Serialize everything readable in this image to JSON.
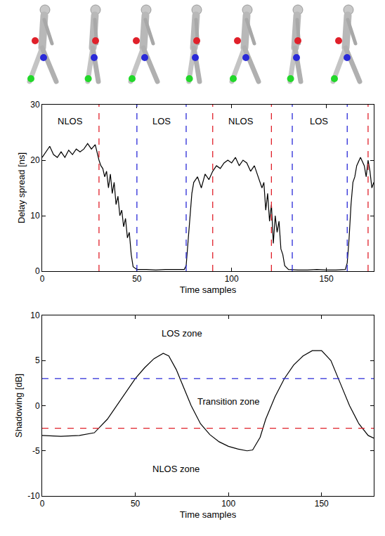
{
  "chart_data": [
    {
      "type": "line",
      "x_label": "Time samples",
      "y_label": "Delay spread [ns]",
      "xlim": [
        0,
        175
      ],
      "ylim": [
        0,
        30
      ],
      "xticks": [
        0,
        50,
        100,
        150
      ],
      "yticks": [
        0,
        10,
        20,
        30
      ],
      "grid": false,
      "color": "#000000",
      "x": [
        0,
        2,
        4,
        6,
        8,
        10,
        12,
        14,
        16,
        18,
        20,
        22,
        24,
        26,
        28,
        30,
        31,
        32,
        33,
        34,
        35,
        36,
        37,
        38,
        39,
        40,
        41,
        42,
        43,
        44,
        45,
        46,
        47,
        48,
        50,
        55,
        60,
        65,
        70,
        75,
        76,
        77,
        78,
        79,
        80,
        82,
        84,
        86,
        88,
        90,
        92,
        94,
        96,
        98,
        100,
        102,
        104,
        106,
        108,
        110,
        112,
        114,
        116,
        117,
        118,
        119,
        120,
        121,
        122,
        123,
        124,
        125,
        126,
        127,
        128,
        130,
        135,
        140,
        145,
        150,
        155,
        160,
        161,
        162,
        163,
        164,
        165,
        166,
        168,
        170,
        171,
        172,
        173,
        174,
        175
      ],
      "values": [
        20.5,
        21.5,
        22.5,
        21,
        20.5,
        21.5,
        20.5,
        21.8,
        21,
        22,
        21.5,
        22,
        23,
        22,
        22.8,
        20,
        19,
        18.5,
        17,
        18,
        15,
        17.5,
        14,
        16,
        12,
        13.5,
        10,
        11,
        8,
        9.5,
        6,
        7,
        3,
        0.8,
        0.3,
        0.3,
        0.2,
        0.3,
        0.3,
        0.3,
        1,
        5,
        10,
        14,
        16,
        17,
        15,
        17.5,
        16.5,
        18,
        19,
        18.5,
        19.5,
        20,
        19.5,
        20.5,
        19,
        20,
        19.5,
        18,
        19,
        17,
        15,
        16,
        11,
        14,
        9,
        12,
        5,
        10,
        7,
        9,
        4,
        3,
        1,
        0.3,
        0.2,
        0.2,
        0.3,
        0.2,
        0.2,
        0.3,
        1.5,
        6,
        12,
        16,
        17,
        19,
        20.5,
        19,
        17,
        20,
        18,
        15,
        16
      ],
      "reference_lines": [
        {
          "x": 30,
          "color": "#e0202a",
          "line_style": "dashed"
        },
        {
          "x": 50,
          "color": "#2a2ad8",
          "line_style": "dashed"
        },
        {
          "x": 76,
          "color": "#2a2ad8",
          "line_style": "dashed"
        },
        {
          "x": 90,
          "color": "#e0202a",
          "line_style": "dashed"
        },
        {
          "x": 121,
          "color": "#e0202a",
          "line_style": "dashed"
        },
        {
          "x": 132,
          "color": "#2a2ad8",
          "line_style": "dashed"
        },
        {
          "x": 161,
          "color": "#2a2ad8",
          "line_style": "dashed"
        },
        {
          "x": 172,
          "color": "#e0202a",
          "line_style": "dashed"
        }
      ],
      "annotations": [
        {
          "text": "NLOS",
          "x": 15,
          "y": 27
        },
        {
          "text": "LOS",
          "x": 63,
          "y": 27
        },
        {
          "text": "NLOS",
          "x": 105,
          "y": 27
        },
        {
          "text": "LOS",
          "x": 146,
          "y": 27
        }
      ]
    },
    {
      "type": "line",
      "x_label": "Time samples",
      "y_label": "Shadowing [dB]",
      "xlim": [
        0,
        178
      ],
      "ylim": [
        -10,
        10
      ],
      "xticks": [
        0,
        50,
        100,
        150
      ],
      "yticks": [
        -10,
        -5,
        0,
        5,
        10
      ],
      "grid": false,
      "color": "#000000",
      "x": [
        0,
        10,
        20,
        28,
        35,
        40,
        45,
        50,
        55,
        60,
        65,
        68,
        72,
        76,
        80,
        85,
        90,
        95,
        100,
        105,
        110,
        113,
        117,
        120,
        125,
        130,
        135,
        140,
        145,
        150,
        155,
        160,
        165,
        170,
        175,
        178
      ],
      "values": [
        -3.3,
        -3.4,
        -3.3,
        -3,
        -1.5,
        0,
        1.5,
        3,
        4.2,
        5.2,
        5.8,
        5.5,
        4,
        2,
        0,
        -2,
        -3.2,
        -4,
        -4.5,
        -4.8,
        -5,
        -4.9,
        -3.5,
        -1.5,
        1,
        3,
        4.5,
        5.5,
        6.1,
        6.1,
        5,
        2.5,
        0,
        -2,
        -3.3,
        -3.6
      ],
      "reference_lines": [
        {
          "y": 3,
          "color": "#2a2ad8",
          "line_style": "dashed"
        },
        {
          "y": -2.5,
          "color": "#e0202a",
          "line_style": "dashed"
        }
      ],
      "annotations": [
        {
          "text": "LOS zone",
          "x": 75,
          "y": 8
        },
        {
          "text": "Transition zone",
          "x": 100,
          "y": 0.5
        },
        {
          "text": "NLOS zone",
          "x": 72,
          "y": -7
        }
      ]
    }
  ]
}
